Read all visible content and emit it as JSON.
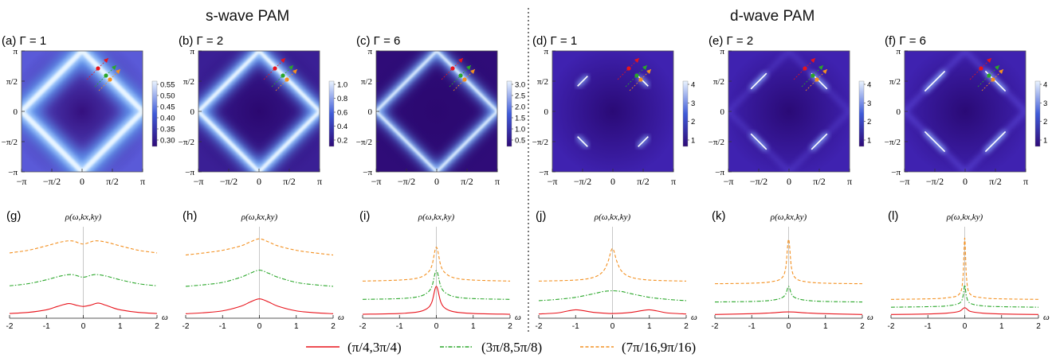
{
  "titles": {
    "s": "s-wave PAM",
    "d": "d-wave PAM"
  },
  "heatmap_ticks": {
    "x": [
      "−π",
      "−π/2",
      "0",
      "π/2",
      "π"
    ],
    "y": [
      "π",
      "π/2",
      "0",
      "−π/2",
      "−π"
    ]
  },
  "line_ticks": {
    "x": [
      "-2",
      "-1",
      "0",
      "1",
      "2"
    ],
    "xlabel": "ω",
    "ylabel": "ρ(ω,kx,ky)"
  },
  "legend": [
    {
      "label": "(π/4,3π/4)",
      "color": "#e8141c",
      "dash": "solid"
    },
    {
      "label": "(3π/8,5π/8)",
      "color": "#2aa72a",
      "dash": "dashdot"
    },
    {
      "label": "(7π/16,9π/16)",
      "color": "#f39020",
      "dash": "dash"
    }
  ],
  "colors": {
    "dark": "#2e0a78",
    "mid": "#3f5bd8",
    "light": "#eaf4ff"
  },
  "chart_data": [
    {
      "type": "heatmap",
      "panel": "(a)",
      "title": "Γ = 1",
      "wave": "s",
      "colorbar": [
        "0.55",
        "0.50",
        "0.45",
        "0.40",
        "0.35",
        "0.30"
      ]
    },
    {
      "type": "heatmap",
      "panel": "(b)",
      "title": "Γ = 2",
      "wave": "s",
      "colorbar": [
        "1.0",
        "0.8",
        "0.6",
        "0.4",
        "0.2"
      ]
    },
    {
      "type": "heatmap",
      "panel": "(c)",
      "title": "Γ = 6",
      "wave": "s",
      "colorbar": [
        "3.0",
        "2.5",
        "2.0",
        "1.5",
        "1.0",
        "0.5"
      ]
    },
    {
      "type": "heatmap",
      "panel": "(d)",
      "title": "Γ = 1",
      "wave": "d",
      "colorbar": [
        "4",
        "3",
        "2",
        "1"
      ]
    },
    {
      "type": "heatmap",
      "panel": "(e)",
      "title": "Γ = 2",
      "wave": "d",
      "colorbar": [
        "4",
        "3",
        "2",
        "1"
      ]
    },
    {
      "type": "heatmap",
      "panel": "(f)",
      "title": "Γ = 6",
      "wave": "d",
      "colorbar": [
        "4",
        "3",
        "2",
        "1"
      ]
    },
    {
      "type": "line",
      "panel": "(g)",
      "xlim": [
        -2,
        2
      ],
      "series": [
        {
          "name": "(π/4,3π/4)",
          "x": [
            -2,
            -1.5,
            -1,
            -0.7,
            -0.4,
            -0.2,
            0,
            0.2,
            0.4,
            0.6,
            0.8,
            1,
            1.5,
            2
          ],
          "y": [
            0.06,
            0.1,
            0.2,
            0.33,
            0.44,
            0.38,
            0.33,
            0.38,
            0.46,
            0.38,
            0.28,
            0.2,
            0.1,
            0.06
          ]
        },
        {
          "name": "(3π/8,5π/8)",
          "x": [
            -2,
            -1.5,
            -1,
            -0.6,
            -0.3,
            0,
            0.3,
            0.6,
            1,
            1.5,
            2
          ],
          "y": [
            1.12,
            1.2,
            1.35,
            1.5,
            1.55,
            1.45,
            1.55,
            1.5,
            1.35,
            1.2,
            1.12
          ]
        },
        {
          "name": "(7π/16,9π/16)",
          "x": [
            -2,
            -1.5,
            -1,
            -0.6,
            -0.3,
            0,
            0.3,
            0.6,
            1,
            1.5,
            2
          ],
          "y": [
            2.38,
            2.48,
            2.65,
            2.8,
            2.84,
            2.72,
            2.84,
            2.8,
            2.65,
            2.48,
            2.38
          ]
        }
      ]
    },
    {
      "type": "line",
      "panel": "(h)",
      "xlim": [
        -2,
        2
      ],
      "series": [
        {
          "name": "(π/4,3π/4)",
          "x": [
            -2,
            -1.5,
            -1,
            -0.5,
            -0.25,
            0,
            0.25,
            0.5,
            1,
            1.5,
            2
          ],
          "y": [
            0.05,
            0.09,
            0.16,
            0.34,
            0.5,
            0.62,
            0.5,
            0.34,
            0.16,
            0.09,
            0.05
          ]
        },
        {
          "name": "(3π/8,5π/8)",
          "x": [
            -2,
            -1.5,
            -1,
            -0.5,
            -0.25,
            0,
            0.25,
            0.5,
            1,
            1.5,
            2
          ],
          "y": [
            1.1,
            1.16,
            1.25,
            1.45,
            1.6,
            1.72,
            1.6,
            1.45,
            1.25,
            1.16,
            1.1
          ]
        },
        {
          "name": "(7π/16,9π/16)",
          "x": [
            -2,
            -1.5,
            -1,
            -0.5,
            -0.25,
            0,
            0.25,
            0.5,
            1,
            1.5,
            2
          ],
          "y": [
            2.3,
            2.38,
            2.48,
            2.65,
            2.8,
            2.92,
            2.8,
            2.65,
            2.48,
            2.38,
            2.3
          ]
        }
      ]
    },
    {
      "type": "line",
      "panel": "(i)",
      "xlim": [
        -2,
        2
      ],
      "series": [
        {
          "name": "(π/4,3π/4)",
          "x": [
            -2,
            -1,
            -0.5,
            -0.25,
            -0.12,
            0,
            0.12,
            0.25,
            0.5,
            1,
            2
          ],
          "y": [
            0.03,
            0.06,
            0.12,
            0.25,
            0.5,
            1.1,
            0.5,
            0.25,
            0.12,
            0.06,
            0.03
          ]
        },
        {
          "name": "(3π/8,5π/8)",
          "x": [
            -2,
            -1,
            -0.5,
            -0.25,
            -0.12,
            0,
            0.12,
            0.25,
            0.5,
            1,
            2
          ],
          "y": [
            0.6,
            0.63,
            0.7,
            0.85,
            1.1,
            1.7,
            1.1,
            0.85,
            0.7,
            0.63,
            0.6
          ]
        },
        {
          "name": "(7π/16,9π/16)",
          "x": [
            -2,
            -1,
            -0.5,
            -0.25,
            -0.12,
            0,
            0.12,
            0.25,
            0.5,
            1,
            2
          ],
          "y": [
            1.3,
            1.34,
            1.42,
            1.6,
            1.9,
            2.6,
            1.9,
            1.6,
            1.42,
            1.34,
            1.3
          ]
        }
      ]
    },
    {
      "type": "line",
      "panel": "(j)",
      "xlim": [
        -2,
        2
      ],
      "series": [
        {
          "name": "(π/4,3π/4)",
          "x": [
            -2,
            -1.5,
            -1.2,
            -1,
            -0.8,
            -0.5,
            0,
            0.5,
            0.8,
            1,
            1.2,
            1.5,
            2
          ],
          "y": [
            0.04,
            0.08,
            0.16,
            0.2,
            0.17,
            0.1,
            0.06,
            0.1,
            0.17,
            0.2,
            0.16,
            0.08,
            0.04
          ]
        },
        {
          "name": "(3π/8,5π/8)",
          "x": [
            -2,
            -1.5,
            -1,
            -0.5,
            -0.25,
            0,
            0.25,
            0.5,
            1,
            1.5,
            2
          ],
          "y": [
            0.55,
            0.6,
            0.68,
            0.82,
            0.9,
            0.93,
            0.9,
            0.82,
            0.68,
            0.6,
            0.55
          ]
        },
        {
          "name": "(7π/16,9π/16)",
          "x": [
            -2,
            -1,
            -0.5,
            -0.25,
            -0.12,
            0,
            0.12,
            0.25,
            0.5,
            1,
            2
          ],
          "y": [
            1.3,
            1.34,
            1.45,
            1.68,
            2.05,
            2.55,
            2.05,
            1.68,
            1.45,
            1.34,
            1.3
          ]
        }
      ]
    },
    {
      "type": "line",
      "panel": "(k)",
      "xlim": [
        -2,
        2
      ],
      "series": [
        {
          "name": "(π/4,3π/4)",
          "x": [
            -2,
            -1,
            -0.5,
            0,
            0.5,
            1,
            2
          ],
          "y": [
            0.02,
            0.05,
            0.08,
            0.12,
            0.08,
            0.05,
            0.02
          ]
        },
        {
          "name": "(3π/8,5π/8)",
          "x": [
            -2,
            -1,
            -0.5,
            -0.2,
            -0.08,
            0,
            0.08,
            0.2,
            0.5,
            1,
            2
          ],
          "y": [
            0.5,
            0.52,
            0.56,
            0.65,
            0.8,
            1.1,
            0.8,
            0.65,
            0.56,
            0.52,
            0.5
          ]
        },
        {
          "name": "(7π/16,9π/16)",
          "x": [
            -2,
            -1,
            -0.5,
            -0.2,
            -0.08,
            0,
            0.08,
            0.2,
            0.5,
            1,
            2
          ],
          "y": [
            1.2,
            1.22,
            1.27,
            1.4,
            1.8,
            2.9,
            1.8,
            1.4,
            1.27,
            1.22,
            1.2
          ]
        }
      ]
    },
    {
      "type": "line",
      "panel": "(l)",
      "xlim": [
        -2,
        2
      ],
      "series": [
        {
          "name": "(π/4,3π/4)",
          "x": [
            -2,
            -1,
            -0.5,
            -0.15,
            0,
            0.15,
            0.5,
            1,
            2
          ],
          "y": [
            0.02,
            0.04,
            0.07,
            0.14,
            0.28,
            0.14,
            0.07,
            0.04,
            0.02
          ]
        },
        {
          "name": "(3π/8,5π/8)",
          "x": [
            -2,
            -1,
            -0.5,
            -0.15,
            -0.05,
            0,
            0.05,
            0.15,
            0.5,
            1,
            2
          ],
          "y": [
            0.3,
            0.32,
            0.35,
            0.45,
            0.7,
            1.15,
            0.7,
            0.45,
            0.35,
            0.32,
            0.3
          ]
        },
        {
          "name": "(7π/16,9π/16)",
          "x": [
            -2,
            -1,
            -0.5,
            -0.15,
            -0.05,
            0,
            0.05,
            0.15,
            0.5,
            1,
            2
          ],
          "y": [
            0.6,
            0.62,
            0.66,
            0.8,
            1.4,
            2.95,
            1.4,
            0.8,
            0.66,
            0.62,
            0.6
          ]
        }
      ]
    }
  ]
}
